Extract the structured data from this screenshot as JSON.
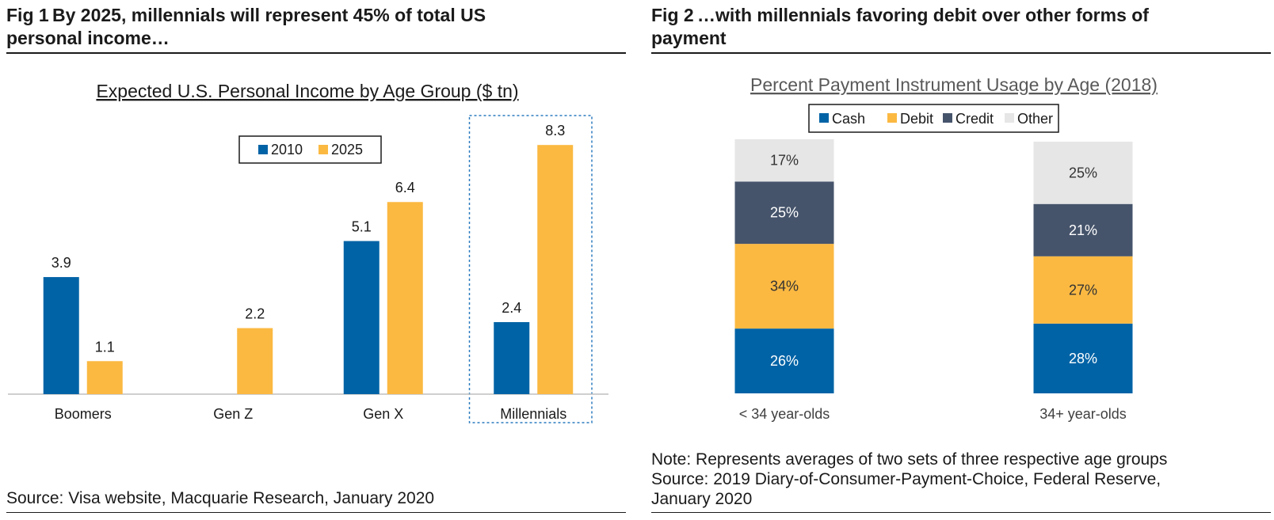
{
  "figures": [
    {
      "fig_number": "Fig 1",
      "heading": "By 2025, millennials will represent 45% of total US personal income…",
      "heading_lines": [
        "By 2025, millennials will represent 45% of total US",
        "personal income…"
      ],
      "source": "Source: Visa website, Macquarie Research, January 2020"
    },
    {
      "fig_number": "Fig 2",
      "heading": "…with millennials favoring debit over other forms of payment",
      "heading_lines": [
        "…with millennials favoring debit over other forms of",
        "payment"
      ],
      "note": "Note: Represents averages of two sets of three respective age groups",
      "source_lines": [
        "Source: 2019 Diary-of-Consumer-Payment-Choice, Federal Reserve,",
        "January 2020"
      ]
    }
  ],
  "chart_data": [
    {
      "type": "bar",
      "title": "Expected U.S. Personal Income  by Age Group  ($ tn)",
      "categories": [
        "Boomers",
        "Gen Z",
        "Gen X",
        "Millennials"
      ],
      "series": [
        {
          "name": "2010",
          "color": "#0063a6",
          "values": [
            3.9,
            null,
            5.1,
            2.4
          ]
        },
        {
          "name": "2025",
          "color": "#fbb942",
          "values": [
            1.1,
            2.2,
            6.4,
            8.3
          ]
        }
      ],
      "data_labels": true,
      "legend": "top-center, boxed",
      "highlight_category": "Millennials",
      "xlabel": "",
      "ylabel": "",
      "ylim": [
        0,
        8.7
      ],
      "grid": false
    },
    {
      "type": "bar",
      "stacked": true,
      "percent": true,
      "title": "Percent Payment Instrument  Usage by Age (2018)",
      "categories": [
        "< 34 year-olds",
        "34+ year-olds"
      ],
      "series": [
        {
          "name": "Cash",
          "color": "#0063a6",
          "label_color": "#ffffff",
          "values": [
            26,
            28
          ]
        },
        {
          "name": "Debit",
          "color": "#fbb942",
          "label_color": "#333333",
          "values": [
            34,
            27
          ]
        },
        {
          "name": "Credit",
          "color": "#46546b",
          "label_color": "#ffffff",
          "values": [
            25,
            21
          ]
        },
        {
          "name": "Other",
          "color": "#e6e6e6",
          "label_color": "#333333",
          "values": [
            17,
            25
          ]
        }
      ],
      "value_suffix": "%",
      "legend": "top-center, boxed",
      "xlabel": "",
      "ylabel": "",
      "ylim": [
        0,
        102
      ],
      "grid": false
    }
  ]
}
